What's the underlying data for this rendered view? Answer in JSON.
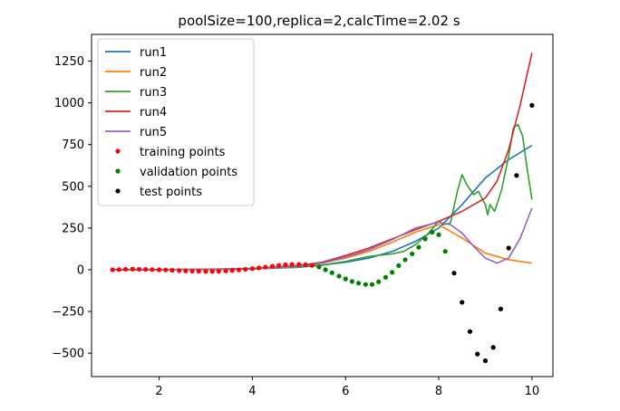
{
  "chart_data": {
    "type": "line",
    "title": "poolSize=100,replica=2,calcTime=2.02 s",
    "xlabel": "",
    "ylabel": "",
    "xlim": [
      0.55,
      10.45
    ],
    "ylim": [
      -640,
      1410
    ],
    "xticks": [
      2,
      4,
      6,
      8,
      10
    ],
    "yticks": [
      -500,
      -250,
      0,
      250,
      500,
      750,
      1000,
      1250
    ],
    "grid": false,
    "legend_position": "top-left",
    "series": [
      {
        "name": "run1",
        "kind": "line",
        "color": "#1f77b4",
        "x": [
          1,
          2,
          3,
          4,
          5,
          5.5,
          6,
          6.5,
          7,
          7.5,
          8,
          8.5,
          9,
          9.5,
          10
        ],
        "y": [
          0,
          1,
          2,
          5,
          15,
          28,
          45,
          70,
          110,
          170,
          250,
          390,
          550,
          660,
          745
        ]
      },
      {
        "name": "run2",
        "kind": "line",
        "color": "#ff7f0e",
        "x": [
          1,
          2,
          3,
          4,
          5,
          5.5,
          6,
          6.5,
          7,
          7.5,
          8,
          8.5,
          9,
          9.5,
          10
        ],
        "y": [
          0,
          1,
          2,
          6,
          22,
          40,
          70,
          110,
          165,
          225,
          270,
          190,
          100,
          60,
          40
        ]
      },
      {
        "name": "run3",
        "kind": "line",
        "color": "#2ca02c",
        "x": [
          1,
          2,
          3,
          4,
          5,
          5.5,
          6,
          6.5,
          7,
          7.25,
          7.5,
          7.75,
          8,
          8.1,
          8.25,
          8.4,
          8.5,
          8.6,
          8.75,
          8.85,
          9,
          9.05,
          9.1,
          9.2,
          9.35,
          9.5,
          9.6,
          9.7,
          9.8,
          9.9,
          10
        ],
        "y": [
          0,
          1,
          2,
          5,
          15,
          28,
          50,
          80,
          95,
          110,
          150,
          210,
          290,
          270,
          280,
          470,
          570,
          510,
          450,
          470,
          390,
          330,
          390,
          350,
          480,
          680,
          850,
          870,
          800,
          600,
          420
        ]
      },
      {
        "name": "run4",
        "kind": "line",
        "color": "#d62728",
        "x": [
          1,
          2,
          3,
          4,
          5,
          5.5,
          6,
          6.5,
          7,
          7.5,
          8,
          8.5,
          9,
          9.25,
          9.5,
          9.75,
          10
        ],
        "y": [
          0,
          1,
          3,
          8,
          25,
          45,
          85,
          130,
          185,
          240,
          290,
          350,
          430,
          530,
          720,
          990,
          1300
        ]
      },
      {
        "name": "run5",
        "kind": "line",
        "color": "#9467bd",
        "x": [
          1,
          2,
          3,
          4,
          5,
          5.5,
          6,
          6.5,
          7,
          7.5,
          8,
          8.25,
          8.5,
          8.75,
          9,
          9.25,
          9.5,
          9.75,
          10
        ],
        "y": [
          0,
          1,
          2,
          5,
          20,
          40,
          75,
          120,
          180,
          250,
          285,
          270,
          220,
          140,
          70,
          40,
          70,
          190,
          370
        ]
      },
      {
        "name": "training points",
        "kind": "scatter",
        "color": "#ff0000",
        "x": [
          1.0,
          1.14,
          1.28,
          1.43,
          1.57,
          1.71,
          1.85,
          2.0,
          2.14,
          2.28,
          2.43,
          2.57,
          2.71,
          2.85,
          3.0,
          3.14,
          3.28,
          3.43,
          3.57,
          3.71,
          3.85,
          4.0,
          4.14,
          4.28,
          4.43,
          4.57,
          4.71,
          4.85,
          5.0,
          5.14,
          5.28
        ],
        "y": [
          0,
          1,
          3,
          4,
          3,
          2,
          1,
          0,
          -1,
          -3,
          -5,
          -7,
          -8,
          -9,
          -10,
          -10,
          -9,
          -7,
          -4,
          -1,
          3,
          7,
          11,
          16,
          21,
          26,
          30,
          32,
          32,
          30,
          26
        ]
      },
      {
        "name": "validation points",
        "kind": "scatter",
        "color": "#008000",
        "x": [
          5.43,
          5.57,
          5.71,
          5.86,
          6.0,
          6.14,
          6.28,
          6.43,
          6.57,
          6.71,
          6.86,
          7.0,
          7.14,
          7.28,
          7.43,
          7.57,
          7.71,
          7.86,
          8.0,
          8.14
        ],
        "y": [
          17,
          0,
          -18,
          -38,
          -55,
          -70,
          -80,
          -88,
          -88,
          -72,
          -45,
          -15,
          25,
          60,
          95,
          135,
          185,
          225,
          210,
          110
        ]
      },
      {
        "name": "test points",
        "kind": "scatter",
        "color": "#000000",
        "x": [
          8.33,
          8.5,
          8.67,
          8.83,
          9.0,
          9.17,
          9.33,
          9.5,
          9.67,
          10.0
        ],
        "y": [
          -20,
          -195,
          -370,
          -505,
          -545,
          -465,
          -235,
          130,
          565,
          985
        ]
      }
    ]
  }
}
